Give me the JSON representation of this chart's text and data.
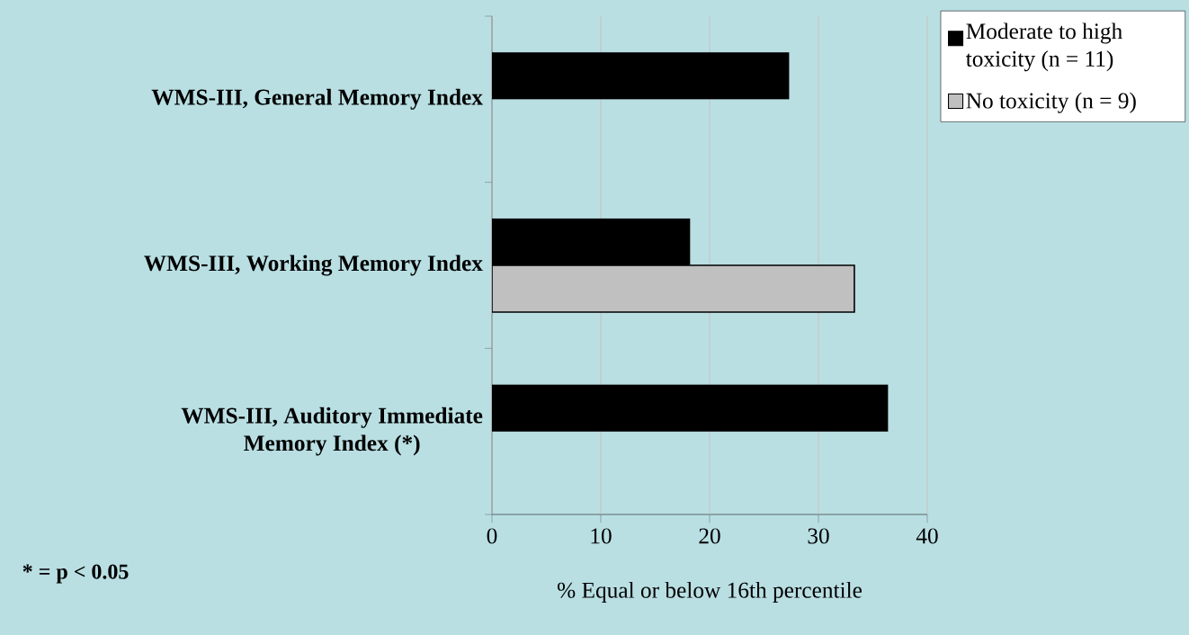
{
  "chart_data": {
    "type": "bar",
    "orientation": "horizontal",
    "categories": [
      "WMS-III, General Memory Index",
      "WMS-III, Working Memory Index",
      "WMS-III, Auditory Immediate Memory Index (*)"
    ],
    "series": [
      {
        "name": "Moderate to high toxicity (n = 11)",
        "color": "#000000",
        "values": [
          27.3,
          18.2,
          36.4
        ]
      },
      {
        "name": "No toxicity (n = 9)",
        "color": "#c0c0c0",
        "values": [
          null,
          33.3,
          null
        ]
      }
    ],
    "xlim": [
      0,
      40
    ],
    "xticks": [
      0,
      10,
      20,
      30,
      40
    ],
    "xlabel": "% Equal or below 16th percentile",
    "annotations": [
      "* = p < 0.05"
    ],
    "grid": "x",
    "legend": "top right"
  }
}
